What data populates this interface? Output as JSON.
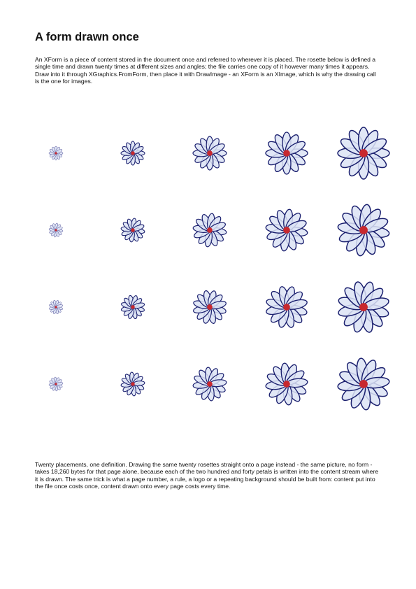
{
  "header": {
    "title": "A form drawn once"
  },
  "intro": "An XForm is a piece of content stored in the document once and referred to wherever it is placed. The rosette below is defined a single time and drawn twenty times at different sizes and angles; the file carries one copy of it however many times it appears. Draw into it through XGraphics.FromForm, then place it with DrawImage - an XForm is an XImage, which is why the drawing call is the one for images.",
  "footer": "Twenty placements, one definition. Drawing the same twenty rosettes straight onto a page instead - the same picture, no form - takes 18,260 bytes for that page alone, because each of the two hundred and forty petals is written into the content stream where it is drawn. The same trick is what a page number, a rule, a logo or a repeating background should be built from: content put into the file once costs once, content drawn onto every page costs every time."
}
